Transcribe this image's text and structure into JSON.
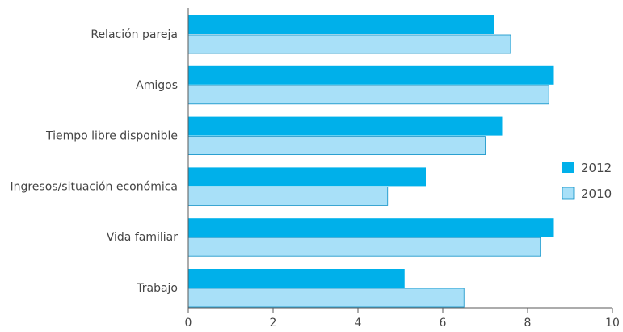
{
  "chart_data": {
    "type": "bar",
    "orientation": "horizontal",
    "categories": [
      "Relación pareja",
      "Amigos",
      "Tiempo libre disponible",
      "Ingresos/situación económica",
      "Vida familiar",
      "Trabajo"
    ],
    "series": [
      {
        "name": "2012",
        "color": "#00b0ea",
        "values": [
          7.2,
          8.6,
          7.4,
          5.6,
          8.6,
          5.1
        ]
      },
      {
        "name": "2010",
        "color": "#a8e0f8",
        "values": [
          7.6,
          8.5,
          7.0,
          4.7,
          8.3,
          6.5
        ]
      }
    ],
    "xlim": [
      0,
      10
    ],
    "xticks": [
      "0",
      "2",
      "4",
      "6",
      "8",
      "10"
    ],
    "grid": false,
    "legend_position": "right"
  }
}
